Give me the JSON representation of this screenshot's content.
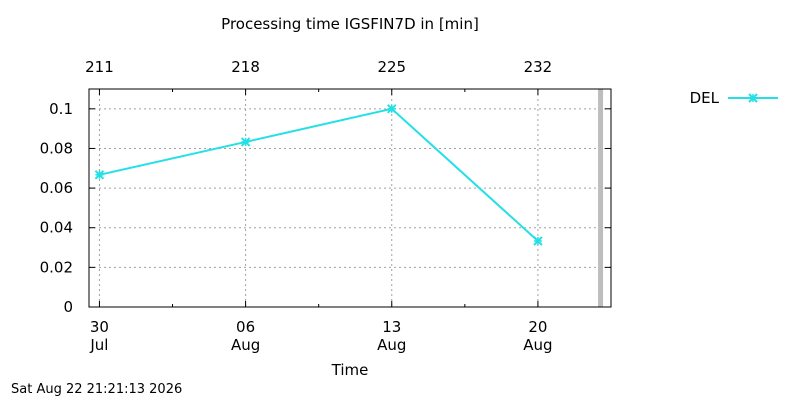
{
  "chart_data": {
    "type": "line",
    "title": "Processing time IGSFIN7D in [min]",
    "xlabel": "Time",
    "ylabel": "",
    "ylim": [
      0,
      0.11
    ],
    "xlim_day": [
      29.5,
      54.5
    ],
    "grid": true,
    "legend_position": "top-right outside",
    "x_ticks_bottom": [
      {
        "day": 30,
        "line1": "30",
        "line2": "Jul"
      },
      {
        "day": 37,
        "line1": "06",
        "line2": "Aug"
      },
      {
        "day": 44,
        "line1": "13",
        "line2": "Aug"
      },
      {
        "day": 51,
        "line1": "20",
        "line2": "Aug"
      }
    ],
    "x_ticks_top": [
      {
        "day": 30,
        "label": "211"
      },
      {
        "day": 37,
        "label": "218"
      },
      {
        "day": 44,
        "label": "225"
      },
      {
        "day": 51,
        "label": "232"
      }
    ],
    "y_ticks": [
      {
        "value": 0,
        "label": "0"
      },
      {
        "value": 0.02,
        "label": "0.02"
      },
      {
        "value": 0.04,
        "label": "0.04"
      },
      {
        "value": 0.06,
        "label": "0.06"
      },
      {
        "value": 0.08,
        "label": "0.08"
      },
      {
        "value": 0.1,
        "label": "0.1"
      }
    ],
    "series": [
      {
        "name": "DEL",
        "color": "#22e0e6",
        "x_day": [
          30,
          37,
          44,
          51
        ],
        "y": [
          0.0667,
          0.0833,
          0.1,
          0.0333
        ]
      }
    ],
    "current_marker_day": 54
  },
  "footer": {
    "timestamp": "Sat Aug 22 21:21:13 2026"
  }
}
